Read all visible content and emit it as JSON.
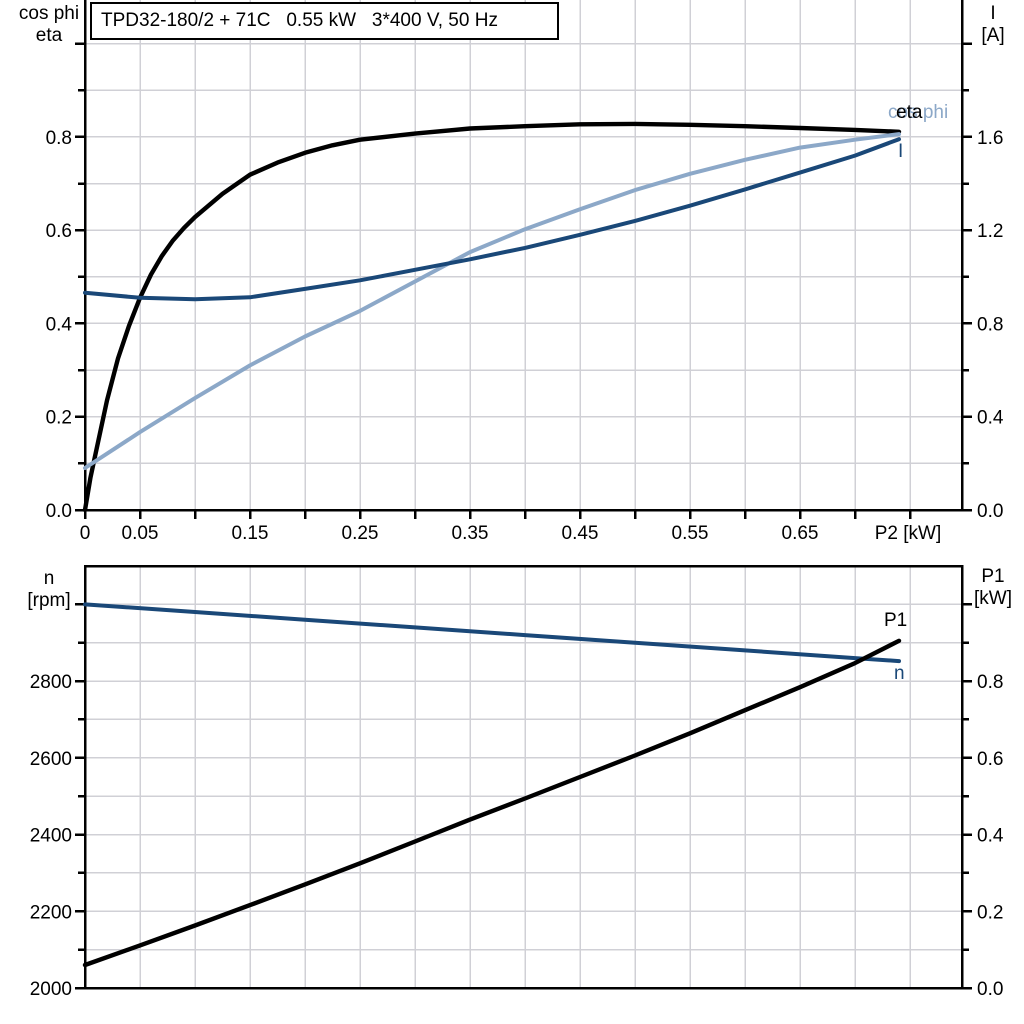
{
  "colors": {
    "black": "#000000",
    "dark_blue": "#1a4878",
    "light_blue": "#8ca8c8",
    "grid": "#d0d0d6",
    "background": "#ffffff"
  },
  "chart_data": [
    {
      "type": "line",
      "title": "TPD32-180/2 + 71C   0.55 kW   3*400 V, 50 Hz",
      "x_axis_label": "P2 [kW]",
      "x_range": [
        0,
        0.797
      ],
      "grid": "on",
      "left_axis": {
        "title_lines": [
          "cos phi",
          "eta"
        ],
        "range": [
          0,
          1.1
        ],
        "tick_labels": [
          {
            "v": 0.0,
            "label": "0.0"
          },
          {
            "v": 0.2,
            "label": "0.2"
          },
          {
            "v": 0.4,
            "label": "0.4"
          },
          {
            "v": 0.6,
            "label": "0.6"
          },
          {
            "v": 0.8,
            "label": "0.8"
          }
        ]
      },
      "right_axis": {
        "title_lines": [
          "I",
          "[A]"
        ],
        "range": [
          0,
          2.2
        ],
        "tick_labels": [
          {
            "v": 0.0,
            "label": "0.0"
          },
          {
            "v": 0.4,
            "label": "0.4"
          },
          {
            "v": 0.8,
            "label": "0.8"
          },
          {
            "v": 1.2,
            "label": "1.2"
          },
          {
            "v": 1.6,
            "label": "1.6"
          }
        ]
      },
      "x_ticks": [
        {
          "v": 0.0,
          "label": "0"
        },
        {
          "v": 0.05,
          "label": "0.05"
        },
        {
          "v": 0.1,
          "label": ""
        },
        {
          "v": 0.15,
          "label": "0.15"
        },
        {
          "v": 0.2,
          "label": ""
        },
        {
          "v": 0.25,
          "label": "0.25"
        },
        {
          "v": 0.3,
          "label": ""
        },
        {
          "v": 0.35,
          "label": "0.35"
        },
        {
          "v": 0.4,
          "label": ""
        },
        {
          "v": 0.45,
          "label": "0.45"
        },
        {
          "v": 0.5,
          "label": ""
        },
        {
          "v": 0.55,
          "label": "0.55"
        },
        {
          "v": 0.6,
          "label": ""
        },
        {
          "v": 0.65,
          "label": "0.65"
        },
        {
          "v": 0.7,
          "label": ""
        },
        {
          "v": 0.75,
          "label": ""
        }
      ],
      "series": [
        {
          "id": "eta",
          "axis": "left",
          "color": "#000000",
          "x": [
            0,
            0.005,
            0.01,
            0.02,
            0.03,
            0.04,
            0.05,
            0.06,
            0.07,
            0.08,
            0.09,
            0.1,
            0.125,
            0.15,
            0.175,
            0.2,
            0.225,
            0.25,
            0.3,
            0.35,
            0.4,
            0.45,
            0.5,
            0.55,
            0.6,
            0.65,
            0.7,
            0.74
          ],
          "y": [
            0,
            0.07,
            0.125,
            0.235,
            0.325,
            0.395,
            0.455,
            0.505,
            0.545,
            0.578,
            0.605,
            0.628,
            0.678,
            0.719,
            0.745,
            0.766,
            0.782,
            0.794,
            0.807,
            0.818,
            0.823,
            0.827,
            0.828,
            0.826,
            0.823,
            0.819,
            0.815,
            0.811
          ]
        },
        {
          "id": "cos-phi",
          "axis": "left",
          "color": "#8ca8c8",
          "x": [
            0,
            0.05,
            0.1,
            0.15,
            0.2,
            0.25,
            0.3,
            0.35,
            0.4,
            0.45,
            0.5,
            0.55,
            0.6,
            0.65,
            0.7,
            0.74
          ],
          "y": [
            0.09,
            0.167,
            0.24,
            0.31,
            0.372,
            0.427,
            0.49,
            0.553,
            0.602,
            0.645,
            0.686,
            0.721,
            0.751,
            0.777,
            0.794,
            0.806
          ]
        },
        {
          "id": "current",
          "axis": "right",
          "color": "#1a4878",
          "x": [
            0,
            0.05,
            0.1,
            0.15,
            0.2,
            0.25,
            0.3,
            0.35,
            0.4,
            0.45,
            0.5,
            0.55,
            0.6,
            0.65,
            0.7,
            0.74
          ],
          "y": [
            0.932,
            0.91,
            0.904,
            0.912,
            0.948,
            0.985,
            1.03,
            1.075,
            1.124,
            1.18,
            1.24,
            1.305,
            1.375,
            1.447,
            1.52,
            1.59
          ]
        }
      ],
      "curve_labels": [
        {
          "text": "cos phi",
          "color": "#8ca8c8"
        },
        {
          "text": "eta",
          "color": "#000000"
        },
        {
          "text": "I",
          "color": "#1a4878"
        }
      ]
    },
    {
      "type": "line",
      "x_axis_label": "",
      "x_range": [
        0,
        0.797
      ],
      "grid": "on",
      "left_axis": {
        "title_lines": [
          "n",
          "[rpm]"
        ],
        "range": [
          2000,
          3100
        ],
        "tick_labels": [
          {
            "v": 2000,
            "label": "2000"
          },
          {
            "v": 2200,
            "label": "2200"
          },
          {
            "v": 2400,
            "label": "2400"
          },
          {
            "v": 2600,
            "label": "2600"
          },
          {
            "v": 2800,
            "label": "2800"
          }
        ]
      },
      "right_axis": {
        "title_lines": [
          "P1",
          "[kW]"
        ],
        "range": [
          0,
          1.1
        ],
        "tick_labels": [
          {
            "v": 0.0,
            "label": "0.0"
          },
          {
            "v": 0.2,
            "label": "0.2"
          },
          {
            "v": 0.4,
            "label": "0.4"
          },
          {
            "v": 0.6,
            "label": "0.6"
          },
          {
            "v": 0.8,
            "label": "0.8"
          }
        ]
      },
      "x_ticks": [],
      "series": [
        {
          "id": "speed",
          "axis": "left",
          "color": "#1a4878",
          "x": [
            0,
            0.1,
            0.2,
            0.3,
            0.4,
            0.5,
            0.6,
            0.7,
            0.74
          ],
          "y": [
            3000,
            2980,
            2960,
            2940,
            2920,
            2900,
            2880,
            2860,
            2852
          ]
        },
        {
          "id": "input-power",
          "axis": "right",
          "color": "#000000",
          "x": [
            0,
            0.05,
            0.1,
            0.15,
            0.2,
            0.25,
            0.3,
            0.35,
            0.4,
            0.45,
            0.5,
            0.55,
            0.6,
            0.65,
            0.7,
            0.74
          ],
          "y": [
            0.06,
            0.111,
            0.163,
            0.216,
            0.27,
            0.325,
            0.382,
            0.439,
            0.494,
            0.55,
            0.606,
            0.664,
            0.724,
            0.784,
            0.847,
            0.905
          ]
        }
      ],
      "curve_labels": [
        {
          "text": "P1",
          "color": "#000000"
        },
        {
          "text": "n",
          "color": "#1a4878"
        }
      ]
    }
  ]
}
